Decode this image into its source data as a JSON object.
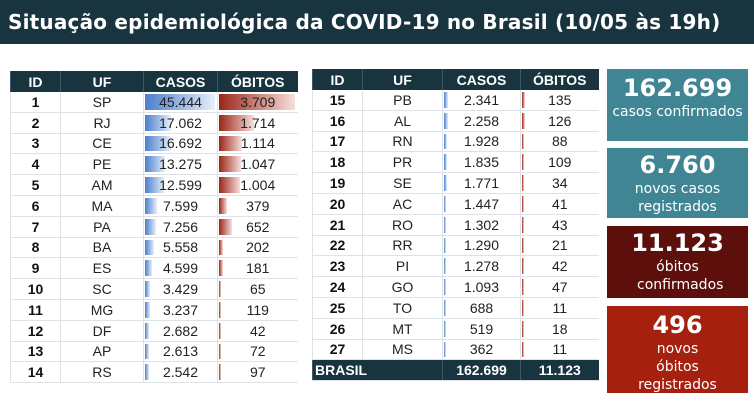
{
  "title": "Situação epidemiológica da COVID-19 no Brasil (10/05 às 19h)",
  "headers": [
    "ID",
    "UF",
    "CASOS",
    "ÓBITOS"
  ],
  "left_rows": [
    [
      "1",
      "SP",
      "45.444",
      "3.709"
    ],
    [
      "2",
      "RJ",
      "17.062",
      "1.714"
    ],
    [
      "3",
      "CE",
      "16.692",
      "1.114"
    ],
    [
      "4",
      "PE",
      "13.275",
      "1.047"
    ],
    [
      "5",
      "AM",
      "12.599",
      "1.004"
    ],
    [
      "6",
      "MA",
      "7.599",
      "379"
    ],
    [
      "7",
      "PA",
      "7.256",
      "652"
    ],
    [
      "8",
      "BA",
      "5.558",
      "202"
    ],
    [
      "9",
      "ES",
      "4.599",
      "181"
    ],
    [
      "10",
      "SC",
      "3.429",
      "65"
    ],
    [
      "11",
      "MG",
      "3.237",
      "119"
    ],
    [
      "12",
      "DF",
      "2.682",
      "42"
    ],
    [
      "13",
      "AP",
      "2.613",
      "72"
    ],
    [
      "14",
      "RS",
      "2.542",
      "97"
    ]
  ],
  "right_rows": [
    [
      "15",
      "PB",
      "2.341",
      "135"
    ],
    [
      "16",
      "AL",
      "2.258",
      "126"
    ],
    [
      "17",
      "RN",
      "1.928",
      "88"
    ],
    [
      "18",
      "PR",
      "1.835",
      "109"
    ],
    [
      "19",
      "SE",
      "1.771",
      "34"
    ],
    [
      "20",
      "AC",
      "1.447",
      "41"
    ],
    [
      "21",
      "RO",
      "1.302",
      "43"
    ],
    [
      "22",
      "RR",
      "1.290",
      "21"
    ],
    [
      "23",
      "PI",
      "1.278",
      "42"
    ],
    [
      "24",
      "GO",
      "1.093",
      "47"
    ],
    [
      "25",
      "TO",
      "688",
      "11"
    ],
    [
      "26",
      "MT",
      "519",
      "18"
    ],
    [
      "27",
      "MS",
      "362",
      "11"
    ]
  ],
  "total": {
    "label": "BRASIL",
    "casos": "162.699",
    "obitos": "11.123"
  },
  "cards": [
    {
      "number": "162.699",
      "label": "casos confirmados",
      "color": "#3f8593"
    },
    {
      "number": "6.760",
      "label": "novos casos registrados",
      "color": "#3f8593"
    },
    {
      "number": "11.123",
      "label": "óbitos confirmados",
      "color": "#5c0f0b"
    },
    {
      "number": "496",
      "label": "novos óbitos registrados",
      "color": "#a5200f"
    }
  ],
  "colors": {
    "header": "#17343f",
    "casos_bar": "#4a7fcf",
    "obitos_bar": "#9c2516"
  }
}
